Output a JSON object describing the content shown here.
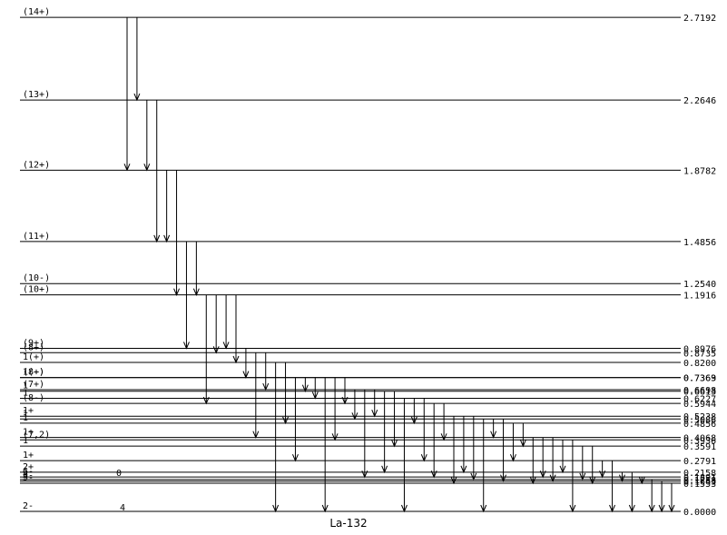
{
  "title": "La-132",
  "levels": [
    {
      "energy": "2.7192",
      "spin": "(14+)"
    },
    {
      "energy": "2.2646",
      "spin": "(13+)"
    },
    {
      "energy": "1.8782",
      "spin": "(12+)"
    },
    {
      "energy": "1.4856",
      "spin": "(11+)"
    },
    {
      "energy": "1.2540",
      "spin": "(10-)"
    },
    {
      "energy": "1.1916",
      "spin": "(10+)"
    },
    {
      "energy": "0.8976",
      "spin": "(9+)"
    },
    {
      "energy": "0.8735",
      "spin": "(8+)"
    },
    {
      "energy": "0.8200",
      "spin": "1(+)"
    },
    {
      "energy": "0.7369",
      "spin": "1(+)"
    },
    {
      "energy": "0.7363",
      "spin": "(8+)"
    },
    {
      "energy": "0.6698",
      "spin": "(7+)"
    },
    {
      "energy": "0.6613",
      "spin": "1"
    },
    {
      "energy": "0.6227",
      "spin": "1"
    },
    {
      "energy": "0.5944",
      "spin": "(8-)"
    },
    {
      "energy": "0.5238",
      "spin": "1+"
    },
    {
      "energy": "0.5086",
      "spin": "1"
    },
    {
      "energy": "0.4856",
      "spin": "1"
    },
    {
      "energy": "0.4068",
      "spin": "1+"
    },
    {
      "energy": "0.3936",
      "spin": "(7,2)"
    },
    {
      "energy": "0.3591",
      "spin": "1"
    },
    {
      "energy": "0.2791",
      "spin": "1+"
    },
    {
      "energy": "0.2158",
      "spin": "2+"
    },
    {
      "energy": "0.1891",
      "spin": "6-"
    },
    {
      "energy": "0.1758",
      "spin": "4"
    },
    {
      "energy": "0.1663",
      "spin": "3-"
    },
    {
      "energy": "0.1553",
      "spin": "5-"
    },
    {
      "energy": "0.0000",
      "spin": "2-"
    }
  ],
  "annotations": [
    {
      "level": 23,
      "text": "0"
    },
    {
      "level": 27,
      "text": "4"
    }
  ],
  "transitions": [
    [
      0,
      2
    ],
    [
      0,
      1
    ],
    [
      1,
      2
    ],
    [
      1,
      3
    ],
    [
      2,
      3
    ],
    [
      2,
      5
    ],
    [
      3,
      6
    ],
    [
      3,
      5
    ],
    [
      5,
      14
    ],
    [
      5,
      7
    ],
    [
      5,
      6
    ],
    [
      5,
      8
    ],
    [
      6,
      9
    ],
    [
      7,
      18
    ],
    [
      7,
      11
    ],
    [
      8,
      27
    ],
    [
      8,
      17
    ],
    [
      9,
      21
    ],
    [
      9,
      12
    ],
    [
      10,
      13
    ],
    [
      10,
      27
    ],
    [
      10,
      19
    ],
    [
      10,
      14
    ],
    [
      11,
      16
    ],
    [
      11,
      23
    ],
    [
      11,
      15
    ],
    [
      12,
      22
    ],
    [
      12,
      20
    ],
    [
      13,
      27
    ],
    [
      13,
      17
    ],
    [
      13,
      21
    ],
    [
      14,
      23
    ],
    [
      14,
      19
    ],
    [
      15,
      26
    ],
    [
      15,
      22
    ],
    [
      15,
      24
    ],
    [
      16,
      27
    ],
    [
      16,
      18
    ],
    [
      16,
      25
    ],
    [
      17,
      21
    ],
    [
      17,
      20
    ],
    [
      18,
      26
    ],
    [
      18,
      23
    ],
    [
      18,
      25
    ],
    [
      19,
      22
    ],
    [
      19,
      27
    ],
    [
      20,
      24
    ],
    [
      20,
      26
    ],
    [
      21,
      23
    ],
    [
      21,
      27
    ],
    [
      22,
      25
    ],
    [
      22,
      27
    ],
    [
      23,
      26
    ],
    [
      24,
      27
    ],
    [
      25,
      27
    ],
    [
      26,
      27
    ]
  ]
}
